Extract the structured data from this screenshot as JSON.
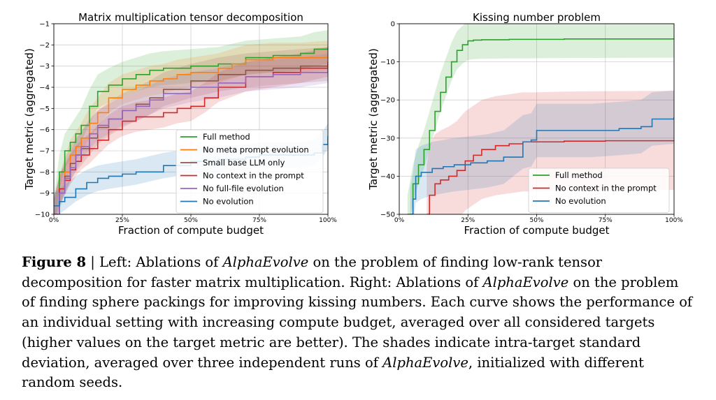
{
  "chart_data": [
    {
      "type": "line",
      "title": "Matrix multiplication tensor decomposition",
      "xlabel": "Fraction of compute budget",
      "ylabel": "Target metric (aggregated)",
      "xlim": [
        0,
        100
      ],
      "ylim": [
        -10,
        -1
      ],
      "xticks": [
        "0%",
        "25%",
        "50%",
        "75%",
        "100%"
      ],
      "yticks": [
        "-10",
        "-9",
        "-8",
        "-7",
        "-6",
        "-5",
        "-4",
        "-3",
        "-2",
        "-1"
      ],
      "grid": true,
      "legend_position": "lower-right",
      "series": [
        {
          "name": "Full method",
          "color": "#2ca02c",
          "band": 0.8,
          "x": [
            0,
            2,
            4,
            6,
            8,
            10,
            13,
            16,
            20,
            25,
            30,
            35,
            40,
            50,
            60,
            70,
            80,
            90,
            95,
            100
          ],
          "y": [
            -10,
            -8,
            -7,
            -6.6,
            -6.2,
            -5.8,
            -4.9,
            -4.2,
            -3.9,
            -3.6,
            -3.4,
            -3.2,
            -3.1,
            -3.0,
            -2.9,
            -2.6,
            -2.5,
            -2.4,
            -2.2,
            -2.1
          ]
        },
        {
          "name": "No meta prompt evolution",
          "color": "#ff7f0e",
          "band": 0.7,
          "x": [
            0,
            2,
            4,
            6,
            8,
            10,
            13,
            16,
            20,
            25,
            30,
            35,
            40,
            45,
            50,
            60,
            65,
            70,
            80,
            90,
            100
          ],
          "y": [
            -10,
            -9,
            -8,
            -7.2,
            -6.8,
            -6.4,
            -5.7,
            -5.2,
            -4.5,
            -4.1,
            -3.9,
            -3.7,
            -3.6,
            -3.4,
            -3.3,
            -3.1,
            -2.9,
            -2.7,
            -2.6,
            -2.6,
            -2.5
          ]
        },
        {
          "name": "Small base LLM only",
          "color": "#8c564b",
          "band": 0.8,
          "x": [
            0,
            2,
            4,
            6,
            8,
            10,
            13,
            16,
            20,
            25,
            30,
            35,
            40,
            50,
            60,
            70,
            80,
            90,
            100
          ],
          "y": [
            -10,
            -9,
            -8.2,
            -7.6,
            -7.2,
            -6.9,
            -6.4,
            -5.9,
            -5.5,
            -5.1,
            -4.8,
            -4.5,
            -4.1,
            -3.7,
            -3.4,
            -3.2,
            -3.1,
            -3.0,
            -2.9
          ]
        },
        {
          "name": "No context in the prompt",
          "color": "#d62728",
          "band": 0.7,
          "x": [
            0,
            2,
            4,
            6,
            8,
            10,
            13,
            16,
            20,
            25,
            30,
            40,
            45,
            50,
            55,
            60,
            70,
            80,
            90,
            100
          ],
          "y": [
            -10,
            -8.8,
            -8.4,
            -7.9,
            -7.5,
            -7.2,
            -6.9,
            -6.5,
            -6.0,
            -5.6,
            -5.4,
            -5.2,
            -5.0,
            -4.9,
            -4.5,
            -4.0,
            -3.5,
            -3.3,
            -3.1,
            -2.8
          ]
        },
        {
          "name": "No full-file evolution",
          "color": "#9467bd",
          "band": 0.7,
          "x": [
            0,
            2,
            4,
            6,
            8,
            10,
            13,
            16,
            20,
            25,
            30,
            35,
            40,
            50,
            60,
            70,
            80,
            90,
            100
          ],
          "y": [
            -10,
            -9,
            -8.3,
            -7.8,
            -7.2,
            -6.8,
            -6.2,
            -5.8,
            -5.5,
            -5.1,
            -4.9,
            -4.6,
            -4.3,
            -4.0,
            -3.8,
            -3.5,
            -3.4,
            -3.3,
            -3.1
          ]
        },
        {
          "name": "No evolution",
          "color": "#1f77b4",
          "band": 0.6,
          "x": [
            0,
            2,
            4,
            8,
            12,
            16,
            20,
            25,
            30,
            40,
            50,
            60,
            70,
            75,
            80,
            90,
            95,
            98,
            100
          ],
          "y": [
            -9.6,
            -9.4,
            -9.2,
            -8.8,
            -8.5,
            -8.3,
            -8.2,
            -8.1,
            -8.0,
            -7.7,
            -7.5,
            -7.4,
            -7.3,
            -7.2,
            -7.2,
            -7.2,
            -7.1,
            -6.7,
            -6.3
          ]
        }
      ]
    },
    {
      "type": "line",
      "title": "Kissing number problem",
      "xlabel": "Fraction of compute budget",
      "ylabel": "Target metric (aggregated)",
      "xlim": [
        0,
        100
      ],
      "ylim": [
        -50,
        0
      ],
      "xticks": [
        "0%",
        "25%",
        "50%",
        "75%",
        "100%"
      ],
      "yticks": [
        "-50",
        "-40",
        "-30",
        "-20",
        "-10",
        "0"
      ],
      "grid": true,
      "legend_position": "lower-right",
      "series": [
        {
          "name": "Full method",
          "color": "#2ca02c",
          "band": 5,
          "x": [
            3,
            5,
            7,
            9,
            11,
            13,
            15,
            17,
            19,
            21,
            23,
            25,
            27,
            30,
            40,
            60,
            100
          ],
          "y": [
            -50,
            -42,
            -37,
            -33,
            -28,
            -23,
            -18,
            -14,
            -10,
            -7,
            -5.5,
            -4.5,
            -4.3,
            -4.2,
            -4.1,
            -4.0,
            -3.9
          ]
        },
        {
          "name": "No context in the prompt",
          "color": "#d62728",
          "band": 13,
          "x": [
            10,
            11,
            13,
            15,
            18,
            21,
            24,
            27,
            30,
            35,
            40,
            45,
            50,
            60,
            75,
            100
          ],
          "y": [
            -50,
            -45,
            -42,
            -41,
            -40,
            -38.5,
            -36,
            -34.5,
            -33,
            -32,
            -31.5,
            -31,
            -31,
            -30.8,
            -30.7,
            -30.6
          ]
        },
        {
          "name": "No evolution",
          "color": "#1f77b4",
          "band": 7,
          "x": [
            4,
            5,
            6,
            8,
            12,
            16,
            20,
            26,
            32,
            38,
            45,
            48,
            50,
            70,
            80,
            88,
            92,
            100
          ],
          "y": [
            -50,
            -46,
            -40,
            -39,
            -38,
            -37.5,
            -37,
            -36.5,
            -36,
            -35,
            -31,
            -30.5,
            -28,
            -28,
            -27.5,
            -27,
            -25,
            -24.5
          ]
        }
      ]
    }
  ],
  "caption": {
    "figure_label": "Figure 8",
    "separator": " | ",
    "text": "Left: Ablations of <i>AlphaEvolve</i> on the problem of finding low-rank tensor decomposition for faster matrix multiplication. Right: Ablations of <i>AlphaEvolve</i> on the problem of finding sphere packings for improving kissing numbers. Each curve shows the performance of an individual setting with increasing compute budget, averaged over all considered targets (higher values on the target metric are better). The shades indicate intra-target standard deviation, averaged over three independent runs of <i>AlphaEvolve</i>, initialized with different random seeds."
  }
}
